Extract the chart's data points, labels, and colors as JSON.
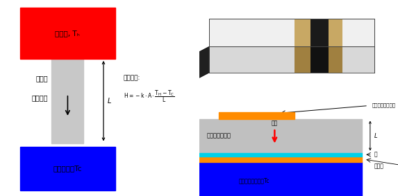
{
  "bg_color": "#ffffff",
  "left_panel": {
    "hot_color": "#ff0000",
    "hot_label": "发热源, Tₕ",
    "cold_color": "#0000ff",
    "cold_label": "低温区域，Tc",
    "cond_color": "#c8c8c8",
    "cond_label": "热导体",
    "flow_label": "热流方向",
    "L_label": "L",
    "eq_title": "热流方程:",
    "eq_line": "H = -k·A·(Tₕ-Tc)/L"
  },
  "panel_3d": {
    "bg": "#000000",
    "slab_top_face": "#f0f0f0",
    "slab_front_face": "#d8d8d8",
    "slab_right_face": "#a0a0a0",
    "groove_color": "#1a1a1a",
    "tan_color": "#c8a864",
    "tan_dark": "#a08040"
  },
  "right_panel": {
    "insul_color": "#c0c0c0",
    "insul_label": "阻热物（材料）",
    "orange_color": "#ff8c00",
    "hs_label": "信号平面，发热源",
    "cyan_color": "#00d0e8",
    "cyan_label": "垫",
    "orange2_label": "导热板",
    "blue_color": "#0000ff",
    "blue_label": "散热器低温区域，Tc",
    "flow_label": "热流",
    "L_label": "L"
  }
}
